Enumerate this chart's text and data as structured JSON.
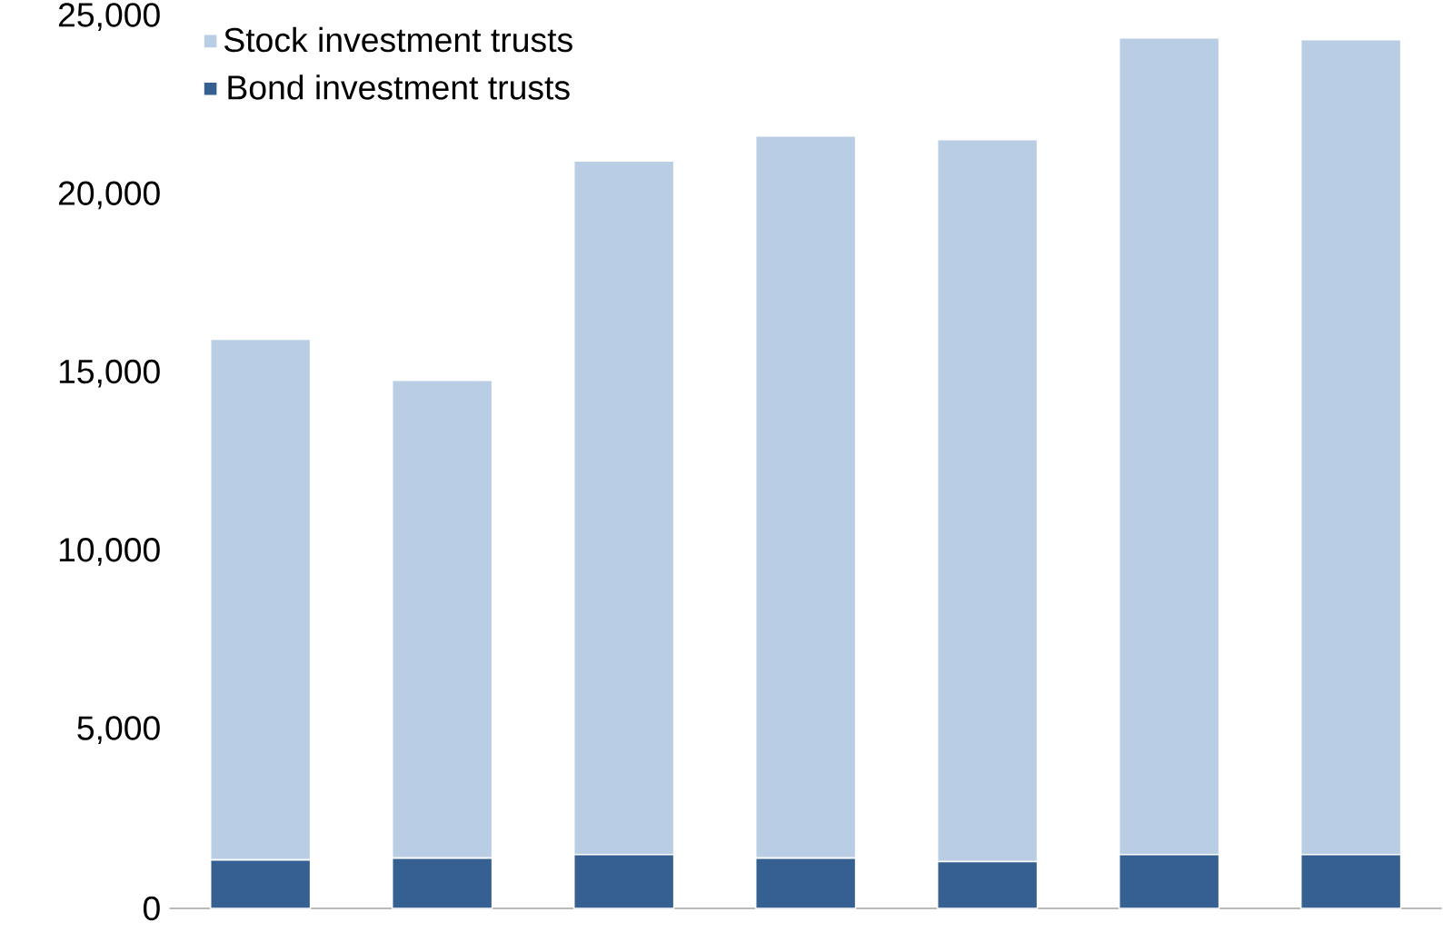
{
  "chart_data": {
    "type": "bar",
    "stacked": true,
    "categories": [
      null,
      null,
      null,
      null,
      null,
      null,
      null
    ],
    "series": [
      {
        "name": "Bond investment trusts",
        "color": "#376092",
        "values": [
          1360,
          1410,
          1510,
          1410,
          1310,
          1510,
          1510
        ]
      },
      {
        "name": "Stock investment trusts",
        "color": "#b9cde5",
        "values": [
          14600,
          13400,
          19450,
          20250,
          20250,
          22900,
          22850
        ]
      }
    ],
    "ylim": [
      0,
      25000
    ],
    "yticks": [
      0,
      {
        "value": 5000,
        "label": "5,000"
      },
      {
        "value": 10000,
        "label": "10,000"
      },
      {
        "value": 15000,
        "label": "15,000"
      },
      {
        "value": 20000,
        "label": "20,000"
      },
      {
        "value": 25000,
        "label": "25,000"
      }
    ],
    "legend": "top left",
    "grid": false
  }
}
